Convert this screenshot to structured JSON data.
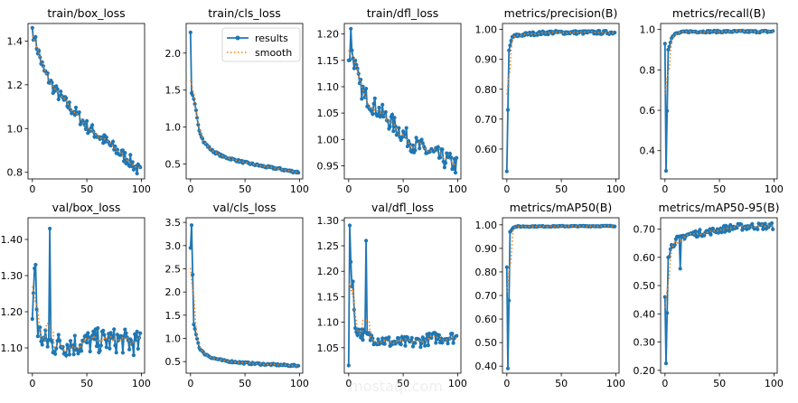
{
  "legend": {
    "results": "results",
    "smooth": "smooth"
  },
  "colors": {
    "results": "#1f77b4",
    "smooth": "#ff7f0e"
  },
  "watermark": {
    "text": "mostaql.com"
  },
  "chart_data": [
    {
      "type": "line",
      "title": "train/box_loss",
      "xlim": [
        -4,
        103
      ],
      "ylim": [
        0.77,
        1.48
      ],
      "xticks": [
        0,
        50,
        100
      ],
      "yticks": [
        0.8,
        1.0,
        1.2,
        1.4
      ],
      "anchors": [
        [
          0,
          1.46
        ],
        [
          2,
          1.41
        ],
        [
          5,
          1.36
        ],
        [
          10,
          1.27
        ],
        [
          20,
          1.18
        ],
        [
          30,
          1.12
        ],
        [
          40,
          1.07
        ],
        [
          50,
          1.01
        ],
        [
          60,
          0.97
        ],
        [
          70,
          0.93
        ],
        [
          80,
          0.89
        ],
        [
          90,
          0.85
        ],
        [
          99,
          0.8
        ]
      ],
      "noise": 0.03,
      "start": null,
      "spikes": []
    },
    {
      "type": "line",
      "title": "train/cls_loss",
      "xlim": [
        -4,
        103
      ],
      "ylim": [
        0.3,
        2.4
      ],
      "xticks": [
        0,
        50,
        100
      ],
      "yticks": [
        0.5,
        1.0,
        1.5,
        2.0
      ],
      "anchors": [
        [
          0,
          2.28
        ],
        [
          1,
          1.46
        ],
        [
          3,
          1.38
        ],
        [
          5,
          1.22
        ],
        [
          8,
          0.96
        ],
        [
          12,
          0.8
        ],
        [
          20,
          0.68
        ],
        [
          30,
          0.6
        ],
        [
          40,
          0.56
        ],
        [
          50,
          0.52
        ],
        [
          60,
          0.49
        ],
        [
          70,
          0.46
        ],
        [
          80,
          0.44
        ],
        [
          90,
          0.41
        ],
        [
          99,
          0.39
        ]
      ],
      "noise": 0.015,
      "start": null,
      "spikes": [],
      "legend": true
    },
    {
      "type": "line",
      "title": "train/dfl_loss",
      "xlim": [
        -4,
        103
      ],
      "ylim": [
        0.925,
        1.22
      ],
      "xticks": [
        0,
        50,
        100
      ],
      "yticks": [
        0.95,
        1.0,
        1.05,
        1.1,
        1.15,
        1.2
      ],
      "anchors": [
        [
          0,
          1.15
        ],
        [
          2,
          1.17
        ],
        [
          5,
          1.15
        ],
        [
          10,
          1.1
        ],
        [
          20,
          1.07
        ],
        [
          30,
          1.05
        ],
        [
          40,
          1.03
        ],
        [
          50,
          1.01
        ],
        [
          60,
          0.99
        ],
        [
          70,
          0.98
        ],
        [
          80,
          0.97
        ],
        [
          90,
          0.96
        ],
        [
          99,
          0.95
        ]
      ],
      "noise": 0.018,
      "start": null,
      "spikes": [
        [
          2,
          1.21
        ],
        [
          15,
          1.08
        ]
      ]
    },
    {
      "type": "line",
      "title": "metrics/precision(B)",
      "xlim": [
        -4,
        103
      ],
      "ylim": [
        0.5,
        1.02
      ],
      "xticks": [
        0,
        50,
        100
      ],
      "yticks": [
        0.6,
        0.7,
        0.8,
        0.9,
        1.0
      ],
      "anchors": [
        [
          0,
          0.525
        ],
        [
          2,
          0.93
        ],
        [
          5,
          0.975
        ],
        [
          10,
          0.98
        ],
        [
          20,
          0.985
        ],
        [
          40,
          0.99
        ],
        [
          99,
          0.99
        ]
      ],
      "noise": 0.006,
      "start": null,
      "spikes": []
    },
    {
      "type": "line",
      "title": "metrics/recall(B)",
      "xlim": [
        -4,
        103
      ],
      "ylim": [
        0.26,
        1.03
      ],
      "xticks": [
        0,
        50,
        100
      ],
      "yticks": [
        0.4,
        0.6,
        0.8,
        1.0
      ],
      "anchors": [
        [
          0,
          0.93
        ],
        [
          1,
          0.3
        ],
        [
          3,
          0.9
        ],
        [
          6,
          0.96
        ],
        [
          10,
          0.98
        ],
        [
          20,
          0.99
        ],
        [
          99,
          0.99
        ]
      ],
      "noise": 0.005,
      "start": null,
      "spikes": []
    },
    {
      "type": "line",
      "title": "val/box_loss",
      "xlim": [
        -4,
        103
      ],
      "ylim": [
        1.03,
        1.46
      ],
      "xticks": [
        0,
        50,
        100
      ],
      "yticks": [
        1.1,
        1.2,
        1.3,
        1.4
      ],
      "anchors": [
        [
          0,
          1.18
        ],
        [
          2,
          1.32
        ],
        [
          5,
          1.15
        ],
        [
          10,
          1.12
        ],
        [
          20,
          1.11
        ],
        [
          40,
          1.11
        ],
        [
          60,
          1.12
        ],
        [
          80,
          1.12
        ],
        [
          99,
          1.11
        ]
      ],
      "noise": 0.035,
      "start": null,
      "spikes": [
        [
          16,
          1.43
        ],
        [
          3,
          1.33
        ]
      ]
    },
    {
      "type": "line",
      "title": "val/cls_loss",
      "xlim": [
        -4,
        103
      ],
      "ylim": [
        0.25,
        3.6
      ],
      "xticks": [
        0,
        50,
        100
      ],
      "yticks": [
        0.5,
        1.0,
        1.5,
        2.0,
        2.5,
        3.0,
        3.5
      ],
      "anchors": [
        [
          0,
          2.95
        ],
        [
          1,
          3.44
        ],
        [
          3,
          1.3
        ],
        [
          5,
          1.1
        ],
        [
          8,
          0.8
        ],
        [
          12,
          0.68
        ],
        [
          20,
          0.58
        ],
        [
          30,
          0.52
        ],
        [
          50,
          0.47
        ],
        [
          70,
          0.44
        ],
        [
          99,
          0.41
        ]
      ],
      "noise": 0.02,
      "start": null,
      "spikes": []
    },
    {
      "type": "line",
      "title": "val/dfl_loss",
      "xlim": [
        -4,
        103
      ],
      "ylim": [
        1.0,
        1.305
      ],
      "xticks": [
        0,
        50,
        100
      ],
      "yticks": [
        1.05,
        1.1,
        1.15,
        1.2,
        1.25,
        1.3
      ],
      "anchors": [
        [
          0,
          1.015
        ],
        [
          1,
          1.29
        ],
        [
          3,
          1.17
        ],
        [
          6,
          1.09
        ],
        [
          10,
          1.08
        ],
        [
          20,
          1.07
        ],
        [
          40,
          1.06
        ],
        [
          60,
          1.06
        ],
        [
          80,
          1.07
        ],
        [
          99,
          1.07
        ]
      ],
      "noise": 0.012,
      "start": null,
      "spikes": [
        [
          16,
          1.26
        ],
        [
          4,
          1.18
        ]
      ]
    },
    {
      "type": "line",
      "title": "metrics/mAP50(B)",
      "xlim": [
        -4,
        103
      ],
      "ylim": [
        0.37,
        1.03
      ],
      "xticks": [
        0,
        50,
        100
      ],
      "yticks": [
        0.4,
        0.5,
        0.6,
        0.7,
        0.8,
        0.9,
        1.0
      ],
      "anchors": [
        [
          0,
          0.82
        ],
        [
          1,
          0.39
        ],
        [
          3,
          0.97
        ],
        [
          6,
          0.99
        ],
        [
          10,
          0.993
        ],
        [
          99,
          0.995
        ]
      ],
      "noise": 0.002,
      "start": null,
      "spikes": []
    },
    {
      "type": "line",
      "title": "metrics/mAP50-95(B)",
      "xlim": [
        -4,
        103
      ],
      "ylim": [
        0.19,
        0.74
      ],
      "xticks": [
        0,
        50,
        100
      ],
      "yticks": [
        0.2,
        0.3,
        0.4,
        0.5,
        0.6,
        0.7
      ],
      "anchors": [
        [
          0,
          0.46
        ],
        [
          1,
          0.225
        ],
        [
          3,
          0.6
        ],
        [
          6,
          0.64
        ],
        [
          10,
          0.66
        ],
        [
          20,
          0.68
        ],
        [
          40,
          0.69
        ],
        [
          60,
          0.705
        ],
        [
          80,
          0.71
        ],
        [
          99,
          0.71
        ]
      ],
      "noise": 0.012,
      "start": null,
      "spikes": [
        [
          14,
          0.56
        ]
      ]
    }
  ]
}
